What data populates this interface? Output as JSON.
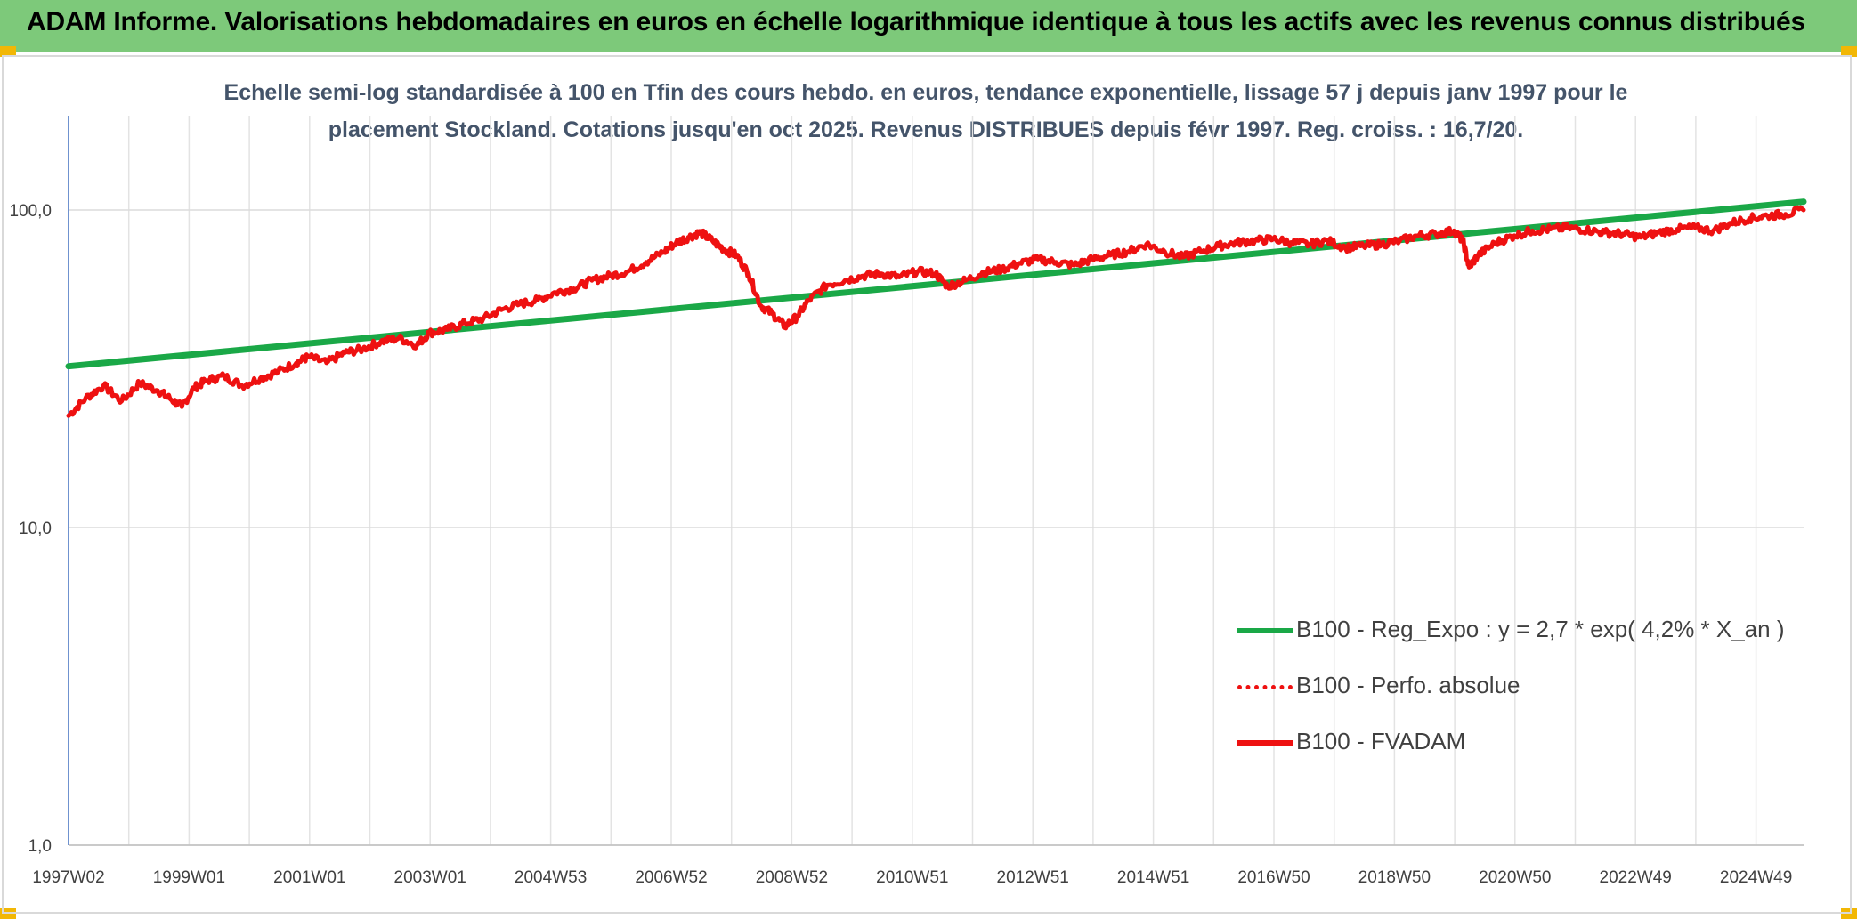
{
  "banner_title": "ADAM Informe. Valorisations hebdomadaires en euros en échelle logarithmique identique à tous les actifs avec les revenus connus distribués",
  "colors": {
    "banner": "#7dc97a",
    "regression": "#1aa847",
    "fvadam": "#ee1111",
    "perfo": "#ee1111",
    "subtitle": "#44546a"
  },
  "chart_data": {
    "type": "line",
    "scale": "log",
    "subtitle_line1": "Echelle semi-log standardisée à 100 en Tfin des cours hebdo. en euros, tendance exponentielle, lissage 57 j depuis janv 1997 pour le",
    "subtitle_line2": "placement Stockland. Cotations jusqu'en oct 2025. Revenus DISTRIBUES depuis févr 1997. Reg. croiss. : 16,7/20.",
    "ylim": [
      1,
      200
    ],
    "y_ticks": [
      "1,0",
      "10,0",
      "100,0"
    ],
    "x_ticks": [
      "1997W02",
      "1999W01",
      "2001W01",
      "2003W01",
      "2004W53",
      "2006W52",
      "2008W52",
      "2010W51",
      "2012W51",
      "2014W51",
      "2016W50",
      "2018W50",
      "2020W50",
      "2022W49",
      "2024W49"
    ],
    "xlim": [
      1997.02,
      2025.8
    ],
    "grid": "vertical",
    "legend_position": "right",
    "series": [
      {
        "name": "B100 - Reg_Expo : y = 2,7 * exp( 4,2% *  X_an )",
        "style": "solid-thick",
        "x": [
          1997.02,
          2025.8
        ],
        "values": [
          32.2,
          106.2
        ]
      },
      {
        "name": "B100 - Perfo. absolue",
        "style": "dotted",
        "x": [],
        "values": []
      },
      {
        "name": "B100 - FVADAM",
        "style": "solid",
        "x": [
          1997.02,
          1997.3,
          1997.6,
          1997.9,
          1998.2,
          1998.5,
          1998.7,
          1998.9,
          1999.1,
          1999.3,
          1999.6,
          1999.9,
          2000.2,
          2000.5,
          2000.8,
          2001.0,
          2001.3,
          2001.6,
          2001.9,
          2002.2,
          2002.5,
          2002.8,
          2003.0,
          2003.3,
          2003.6,
          2003.9,
          2004.2,
          2004.5,
          2004.8,
          2005.1,
          2005.4,
          2005.7,
          2006.0,
          2006.3,
          2006.6,
          2006.9,
          2007.1,
          2007.3,
          2007.5,
          2007.7,
          2007.9,
          2008.1,
          2008.3,
          2008.5,
          2008.7,
          2008.9,
          2009.1,
          2009.3,
          2009.6,
          2009.9,
          2010.2,
          2010.5,
          2010.8,
          2011.1,
          2011.4,
          2011.6,
          2011.9,
          2012.2,
          2012.5,
          2012.8,
          2013.1,
          2013.4,
          2013.7,
          2014.0,
          2014.3,
          2014.6,
          2014.9,
          2015.2,
          2015.5,
          2015.8,
          2016.1,
          2016.4,
          2016.7,
          2017.0,
          2017.3,
          2017.6,
          2017.9,
          2018.2,
          2018.5,
          2018.8,
          2019.1,
          2019.4,
          2019.7,
          2020.0,
          2020.15,
          2020.25,
          2020.4,
          2020.7,
          2021.0,
          2021.3,
          2021.6,
          2021.9,
          2022.2,
          2022.5,
          2022.8,
          2023.1,
          2023.4,
          2023.7,
          2024.0,
          2024.3,
          2024.6,
          2024.9,
          2025.2,
          2025.5,
          2025.8
        ],
        "values": [
          22.5,
          25.5,
          28.0,
          25.0,
          28.5,
          27.0,
          25.5,
          24.0,
          27.5,
          29.0,
          30.0,
          28.0,
          29.5,
          31.0,
          33.0,
          34.5,
          33.0,
          35.5,
          36.5,
          38.5,
          39.5,
          37.5,
          41.0,
          42.0,
          44.0,
          45.5,
          48.5,
          50.5,
          52.0,
          55.0,
          56.5,
          60.0,
          62.0,
          64.0,
          68.5,
          74.0,
          79.0,
          82.0,
          85.0,
          80.0,
          75.0,
          72.0,
          63.0,
          50.0,
          47.0,
          43.0,
          46.0,
          52.0,
          58.0,
          60.0,
          62.0,
          63.0,
          61.5,
          64.0,
          63.0,
          57.5,
          60.0,
          63.5,
          65.0,
          68.0,
          70.0,
          68.5,
          67.0,
          70.0,
          72.0,
          74.0,
          78.0,
          74.0,
          71.0,
          74.0,
          77.0,
          79.0,
          80.0,
          81.0,
          79.0,
          78.0,
          80.0,
          76.0,
          77.0,
          78.0,
          80.0,
          83.0,
          84.0,
          86.0,
          80.0,
          66.0,
          72.0,
          79.0,
          83.0,
          86.0,
          87.0,
          88.0,
          86.5,
          85.0,
          84.0,
          82.0,
          85.0,
          87.0,
          88.0,
          86.0,
          91.0,
          94.0,
          96.0,
          97.0,
          100.0
        ]
      }
    ]
  }
}
